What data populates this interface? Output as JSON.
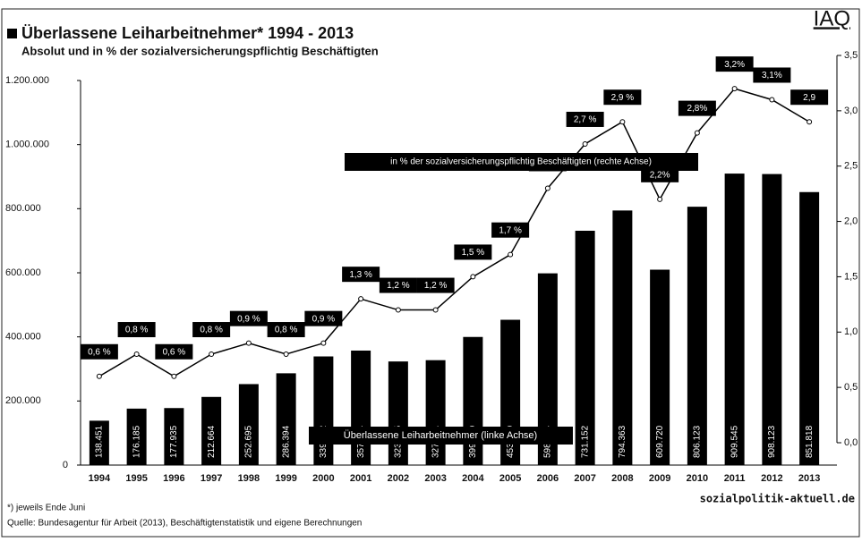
{
  "chart_data": {
    "type": "bar_line",
    "title": "Überlassene Leiharbeitnehmer* 1994 - 2013",
    "subtitle": "Absolut und in % der sozialversicherungspflichtig Beschäftigten",
    "brand": "IAQ",
    "source_logo": "sozialpolitik-aktuell.de",
    "annotations": [
      "in % der sozialversicherungspflichtig Beschäftigten (rechte Achse)",
      "Überlassene Leiharbeitnehmer (linke Achse)"
    ],
    "footnote": "*) jeweils Ende Juni",
    "source": "Quelle: Bundesagentur für Arbeit (2013), Beschäftigtenstatistik und eigene Berechnungen",
    "categories": [
      "1994",
      "1995",
      "1996",
      "1997",
      "1998",
      "1999",
      "2000",
      "2001",
      "2002",
      "2003",
      "2004",
      "2005",
      "2006",
      "2007",
      "2008",
      "2009",
      "2010",
      "2011",
      "2012",
      "2013"
    ],
    "series": [
      {
        "name": "Überlassene Leiharbeitnehmer",
        "color": "#000000",
        "values": [
          138451,
          176185,
          177935,
          212664,
          252695,
          286394,
          339022,
          357264,
          323295,
          327331,
          399789,
          453389,
          598284,
          731152,
          794363,
          609720,
          806123,
          909545,
          908123,
          851818
        ],
        "value_labels": [
          "138.451",
          "176.185",
          "177.935",
          "212.664",
          "252.695",
          "286.394",
          "339.022",
          "357.264",
          "323.295",
          "327.331",
          "399.789",
          "453.389",
          "598.284",
          "731.152",
          "794.363",
          "609.720",
          "806.123",
          "909.545",
          "908.123",
          "851.818"
        ]
      },
      {
        "name": "in % der sozialversicherungspflichtig Beschäftigten",
        "color": "#000000",
        "axis": "y2",
        "values": [
          0.6,
          0.8,
          0.6,
          0.8,
          0.9,
          0.8,
          0.9,
          1.3,
          1.2,
          1.2,
          1.5,
          1.7,
          2.3,
          2.7,
          2.9,
          2.2,
          2.8,
          3.2,
          3.1,
          2.9
        ],
        "value_labels": [
          "0,6 %",
          "0,8 %",
          "0,6 %",
          "0,8 %",
          "0,9 %",
          "0,8 %",
          "0,9 %",
          "1,3 %",
          "1,2 %",
          "1,2 %",
          "1,5 %",
          "1,7 %",
          "2,3 %",
          "2,7 %",
          "2,9 %",
          "2,2%",
          "2,8%",
          "3,2%",
          "3,1%",
          "2,9"
        ]
      }
    ],
    "ylim": [
      0,
      1200000
    ],
    "yticks": [
      0,
      {
        "value": 200000,
        "label": "200.000"
      },
      {
        "value": 400000,
        "label": "400.000"
      },
      {
        "value": 600000,
        "label": "600.000"
      },
      {
        "value": 800000,
        "label": "800.000"
      },
      {
        "value": 1000000,
        "label": "1.000.000"
      },
      {
        "value": 1200000,
        "label": "1.200.000"
      }
    ],
    "y2lim": [
      0,
      3.5
    ],
    "y2ticks": [
      {
        "value": 0,
        "label": "0,0"
      },
      {
        "value": 0.5,
        "label": "0,5"
      },
      {
        "value": 1,
        "label": "1,0"
      },
      {
        "value": 1.5,
        "label": "1,5"
      },
      {
        "value": 2,
        "label": "2,0"
      },
      {
        "value": 2.5,
        "label": "2,5"
      },
      {
        "value": 3,
        "label": "3,0"
      },
      {
        "value": 3.5,
        "label": "3,5"
      }
    ]
  }
}
